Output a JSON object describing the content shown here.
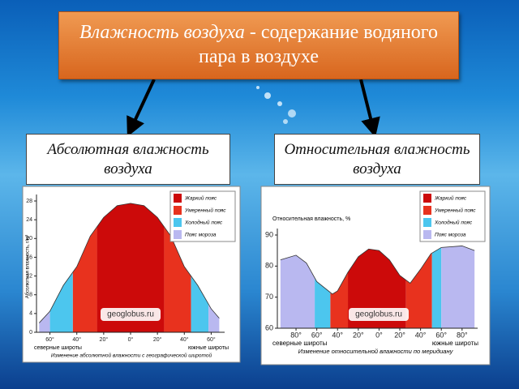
{
  "title_box": {
    "term": "Влажность воздуха",
    "rest": "- содержание водяного пара в воздухе"
  },
  "boxes": [
    "Абсолютная влажность воздуха",
    "Относительная влажность воздуха"
  ],
  "chart_data": [
    {
      "type": "area",
      "y_label": "Абсолютная влажность, г/м³",
      "x": [
        68,
        60,
        50,
        40,
        30,
        20,
        10,
        0,
        -10,
        -20,
        -30,
        -40,
        -50,
        -60,
        -66
      ],
      "values": [
        2,
        4.5,
        10,
        14,
        20.5,
        24.5,
        27,
        27.5,
        27,
        24.5,
        20.5,
        14,
        10,
        5,
        3
      ],
      "xlim": [
        70,
        -70
      ],
      "ylim": [
        0,
        28
      ],
      "yticks": [
        0,
        4,
        8,
        12,
        16,
        20,
        24,
        28
      ],
      "xticks": [
        {
          "value": 60,
          "label": "60°"
        },
        {
          "value": 40,
          "label": "40°"
        },
        {
          "value": 20,
          "label": "20°"
        },
        {
          "value": 0,
          "label": "0°"
        },
        {
          "value": -20,
          "label": "20°"
        },
        {
          "value": -40,
          "label": "40°"
        },
        {
          "value": -60,
          "label": "60°"
        }
      ],
      "zones": [
        {
          "name": "Жаркий пояс",
          "color": "#cc0a0a",
          "ranges": [
            [
              25,
              -25
            ]
          ]
        },
        {
          "name": "Умеренный пояс",
          "color": "#e8321e",
          "ranges": [
            [
              43,
              25
            ],
            [
              -25,
              -45
            ]
          ]
        },
        {
          "name": "Холодный пояс",
          "color": "#4cc6ee",
          "ranges": [
            [
              60,
              43
            ],
            [
              -45,
              -58
            ]
          ]
        },
        {
          "name": "Пояс мороза",
          "color": "#b9b8f0",
          "ranges": [
            [
              70,
              60
            ],
            [
              -58,
              -70
            ]
          ]
        }
      ],
      "watermark": "geoglobus.ru",
      "x_label_left": "северные широты",
      "x_label_right": "южные широты",
      "caption": "Изменение абсолютной влажности с географической широтой"
    },
    {
      "type": "area",
      "y_label": "Относительная влажность, %",
      "x": [
        95,
        80,
        70,
        60,
        45,
        40,
        30,
        20,
        10,
        0,
        -10,
        -20,
        -30,
        -40,
        -50,
        -60,
        -80,
        -92
      ],
      "values": [
        82,
        83.5,
        81,
        75,
        71,
        72,
        78,
        83,
        85.5,
        85,
        82,
        77,
        74.5,
        79,
        84,
        86,
        86.5,
        85
      ],
      "xlim": [
        98,
        -95
      ],
      "ylim": [
        60,
        90
      ],
      "yticks": [
        60,
        70,
        80,
        90
      ],
      "xticks": [
        {
          "value": 80,
          "label": "80°"
        },
        {
          "value": 60,
          "label": "60°"
        },
        {
          "value": 40,
          "label": "40°"
        },
        {
          "value": 20,
          "label": "20°"
        },
        {
          "value": 0,
          "label": "0°"
        },
        {
          "value": -20,
          "label": "20°"
        },
        {
          "value": -40,
          "label": "40°"
        },
        {
          "value": -60,
          "label": "60°"
        },
        {
          "value": -80,
          "label": "80°"
        }
      ],
      "zones": [
        {
          "name": "Жаркий пояс",
          "color": "#cc0a0a",
          "ranges": [
            [
              30,
              -26
            ]
          ]
        },
        {
          "name": "Умеренный пояс",
          "color": "#e8321e",
          "ranges": [
            [
              47,
              30
            ],
            [
              -26,
              -51
            ]
          ]
        },
        {
          "name": "Холодный пояс",
          "color": "#4cc6ee",
          "ranges": [
            [
              62,
              47
            ],
            [
              -51,
              -60
            ]
          ]
        },
        {
          "name": "Пояс мороза",
          "color": "#b9b8f0",
          "ranges": [
            [
              98,
              62
            ],
            [
              -60,
              -95
            ]
          ]
        }
      ],
      "watermark": "geoglobus.ru",
      "x_label_left": "северные широты",
      "x_label_right": "южные широты",
      "caption": "Изменение относительной влажности по меридиану"
    }
  ]
}
